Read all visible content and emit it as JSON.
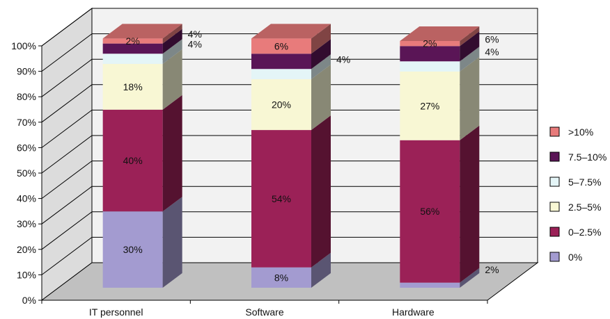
{
  "chart_data": {
    "type": "bar",
    "stacked": true,
    "three_d": true,
    "categories": [
      "IT personnel",
      "Software",
      "Hardware"
    ],
    "series": [
      {
        "name": "0%",
        "color": "#a39bd0",
        "values": [
          30,
          8,
          2
        ]
      },
      {
        "name": "0–2.5%",
        "color": "#9b2157",
        "values": [
          40,
          54,
          56
        ]
      },
      {
        "name": "2.5–5%",
        "color": "#f8f7d4",
        "values": [
          18,
          20,
          27
        ]
      },
      {
        "name": "5–7.5%",
        "color": "#e4f5f7",
        "values": [
          4,
          4,
          4
        ]
      },
      {
        "name": "7.5–10%",
        "color": "#5a1556",
        "values": [
          4,
          6,
          6
        ]
      },
      {
        "name": ">10%",
        "color": "#e87b7b",
        "values": [
          2,
          6,
          2
        ]
      }
    ],
    "value_labels": [
      [
        "30%",
        "8%",
        "2%"
      ],
      [
        "40%",
        "54%",
        "56%"
      ],
      [
        "18%",
        "20%",
        "27%"
      ],
      [
        "4%",
        "4%",
        "4%"
      ],
      [
        "4%",
        "",
        "6%"
      ],
      [
        "2%",
        "6%",
        "2%"
      ]
    ],
    "y_ticks": [
      "0%",
      "10%",
      "20%",
      "30%",
      "40%",
      "50%",
      "60%",
      "70%",
      "80%",
      "90%",
      "100%"
    ],
    "ylim": [
      0,
      100
    ],
    "grid": true,
    "legend": "right",
    "title": "",
    "xlabel": "",
    "ylabel": ""
  }
}
